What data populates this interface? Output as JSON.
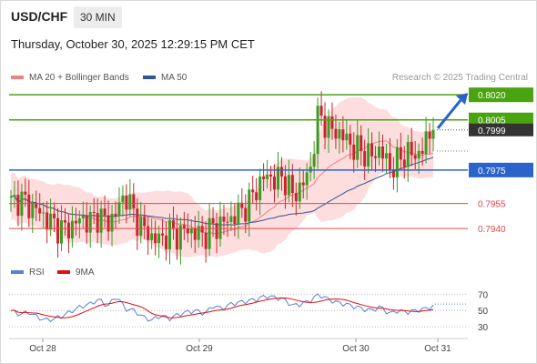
{
  "header": {
    "symbol": "USD/CHF",
    "timeframe": "30 MIN",
    "datetime": "Thursday, October 30, 2025 12:29:15 PM CET"
  },
  "legend": {
    "ma_bb_label": "MA 20 + Bollinger Bands",
    "ma50_label": "MA 50",
    "ma_bb_color": "#f08080",
    "ma50_color": "#2f5597",
    "research": "Research © 2025 Trading Central"
  },
  "rsi_legend": {
    "rsi_label": "RSI",
    "ma_label": "9MA",
    "rsi_color": "#5b7fd6",
    "ma_color": "#e01010"
  },
  "chart_data": [
    {
      "type": "candlestick",
      "x_labels": [
        "Oct 28",
        "Oct 29",
        "Oct 30",
        "Oct 31"
      ],
      "ylim": [
        0.7927,
        0.8025
      ],
      "levels": [
        {
          "value": "0.8020",
          "kind": "resistance",
          "color": "#4aa40f"
        },
        {
          "value": "0.8005",
          "kind": "resistance",
          "color": "#4aa40f"
        },
        {
          "value": "0.7999",
          "kind": "last_price",
          "color": "#333333"
        },
        {
          "value": "0.7975",
          "kind": "pivot",
          "color": "#2a63c9"
        },
        {
          "value": "0.7955",
          "kind": "support",
          "color": "#e0474c"
        },
        {
          "value": "0.7940",
          "kind": "support",
          "color": "#e0474c"
        }
      ],
      "colors": {
        "up": "#3a9d23",
        "down": "#c7252b",
        "bands": "#fdd5d5"
      },
      "anchors": [
        0.7955,
        0.7958,
        0.7954,
        0.7951,
        0.7946,
        0.7942,
        0.7939,
        0.7942,
        0.7946,
        0.7944,
        0.7948,
        0.7943,
        0.795,
        0.7961,
        0.7948,
        0.794,
        0.7935,
        0.7933,
        0.7938,
        0.7936,
        0.794,
        0.7937,
        0.7936,
        0.7941,
        0.7943,
        0.7946,
        0.795,
        0.7955,
        0.7965,
        0.7972,
        0.7969,
        0.7971,
        0.796,
        0.7965,
        0.7975,
        0.801,
        0.8,
        0.7998,
        0.7994,
        0.7988,
        0.7986,
        0.7983,
        0.7988,
        0.7976,
        0.798,
        0.7986,
        0.7983,
        0.799,
        0.7999
      ]
    },
    {
      "type": "line",
      "title": "RSI",
      "yticks": [
        70,
        50,
        30
      ],
      "ylim": [
        20,
        85
      ],
      "anchors": [
        50,
        45,
        48,
        42,
        38,
        40,
        44,
        50,
        55,
        58,
        64,
        55,
        68,
        52,
        50,
        42,
        38,
        44,
        40,
        45,
        48,
        50,
        46,
        56,
        52,
        58,
        60,
        62,
        64,
        68,
        66,
        64,
        56,
        58,
        62,
        70,
        64,
        60,
        58,
        55,
        52,
        50,
        55,
        46,
        50,
        48,
        50,
        52,
        55
      ]
    }
  ]
}
